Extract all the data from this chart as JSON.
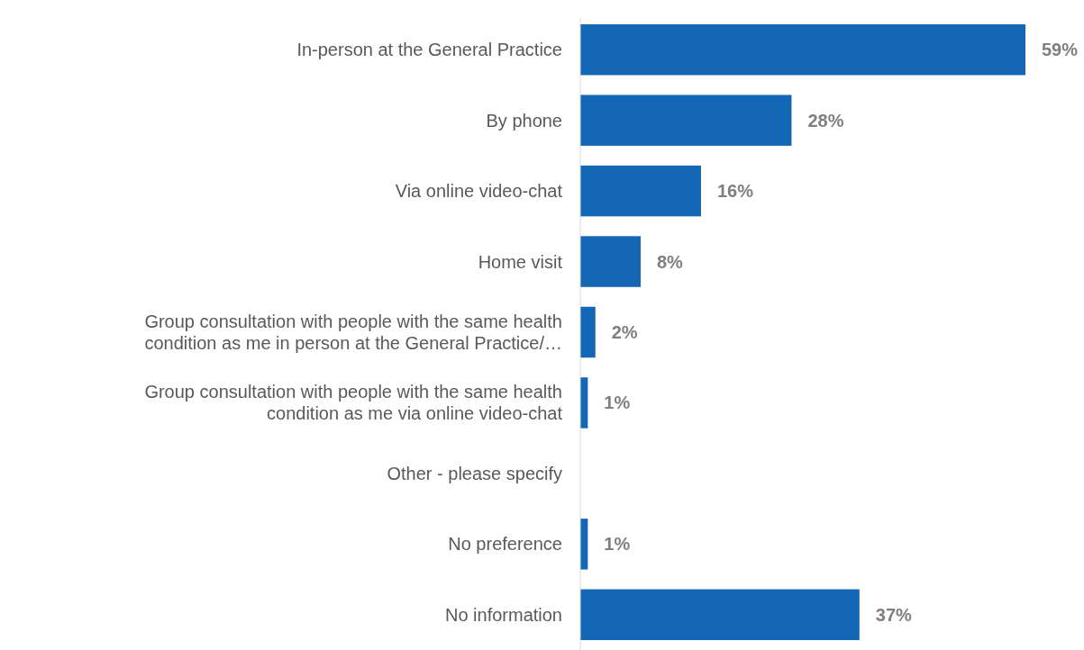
{
  "chart_data": {
    "type": "bar",
    "orientation": "horizontal",
    "value_labels": [
      "59%",
      "28%",
      "16%",
      "8%",
      "2%",
      "1%",
      null,
      "1%",
      "37%"
    ],
    "color": "#1467b4",
    "categories": [
      "In-person at the General Practice",
      "By phone",
      "Via online video-chat",
      "Home visit",
      "Group consultation with people with the same health condition as me in person at the General Practice/…",
      "Group consultation with people with the same health condition as me via online video-chat",
      "Other - please specify",
      "No preference",
      "No information"
    ],
    "values": [
      59,
      28,
      16,
      8,
      2,
      1,
      null,
      1,
      37
    ]
  }
}
